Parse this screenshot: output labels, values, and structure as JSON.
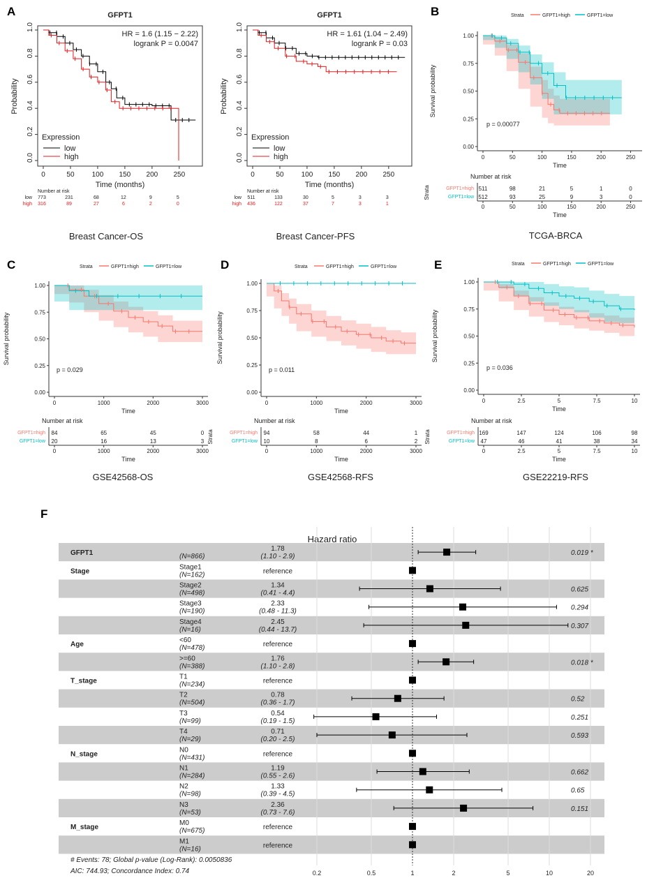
{
  "colors": {
    "high": "#f8766d",
    "low": "#00bfc4",
    "high_fill": "#f8766d",
    "low_fill": "#00bfc4",
    "km_low": "#000000",
    "km_high": "#e41a1c",
    "row_band": "#cccccc"
  },
  "panels": {
    "A": {
      "letter": "A",
      "plots": [
        {
          "title": "GFPT1",
          "hr_text": "HR = 1.6 (1.15 − 2.22)",
          "logrank_text": "logrank P = 0.0047",
          "ylabel": "Probability",
          "xlabel": "Time (months)",
          "legend_title": "Expression",
          "legend_low": "low",
          "legend_high": "high",
          "risk_header": "Number at risk",
          "risk_low_label": "low",
          "risk_high_label": "high",
          "risk_low": [
            "773",
            "231",
            "68",
            "12",
            "9",
            "5"
          ],
          "risk_high": [
            "316",
            "89",
            "27",
            "6",
            "2",
            "0"
          ],
          "caption": "Breast Cancer-OS",
          "xticks": [
            "0",
            "50",
            "100",
            "150",
            "200",
            "250"
          ],
          "yticks": [
            "0.0",
            "0.2",
            "0.4",
            "0.6",
            "0.8",
            "1.0"
          ]
        },
        {
          "title": "GFPT1",
          "hr_text": "HR = 1.61 (1.04 − 2.49)",
          "logrank_text": "logrank P = 0.03",
          "ylabel": "Probability",
          "xlabel": "Time (months)",
          "legend_title": "Expression",
          "legend_low": "low",
          "legend_high": "high",
          "risk_header": "Number at risk",
          "risk_low_label": "low",
          "risk_high_label": "high",
          "risk_low": [
            "511",
            "133",
            "30",
            "5",
            "3",
            "3"
          ],
          "risk_high": [
            "436",
            "122",
            "37",
            "7",
            "3",
            "1"
          ],
          "caption": "Breast Cancer-PFS",
          "xticks": [
            "0",
            "50",
            "100",
            "150",
            "200",
            "250"
          ],
          "yticks": [
            "0.0",
            "0.2",
            "0.4",
            "0.6",
            "0.8",
            "1.0"
          ]
        }
      ]
    },
    "B": {
      "letter": "B",
      "caption": "TCGA-BRCA",
      "pvalue": "p = 0.00077",
      "risk_high": [
        "511",
        "98",
        "21",
        "5",
        "1",
        "0"
      ],
      "risk_low": [
        "512",
        "93",
        "25",
        "9",
        "3",
        "0"
      ],
      "xticks": [
        "0",
        "50",
        "100",
        "150",
        "200",
        "250"
      ]
    },
    "C": {
      "letter": "C",
      "caption": "GSE42568-OS",
      "pvalue": "p = 0.029",
      "risk_high": [
        "84",
        "65",
        "45",
        "0"
      ],
      "risk_low": [
        "20",
        "16",
        "13",
        "3"
      ],
      "xticks": [
        "0",
        "1000",
        "2000",
        "3000"
      ]
    },
    "D": {
      "letter": "D",
      "caption": "GSE42568-RFS",
      "pvalue": "p = 0.011",
      "risk_high": [
        "94",
        "58",
        "44",
        "1"
      ],
      "risk_low": [
        "10",
        "8",
        "6",
        "2"
      ],
      "xticks": [
        "0",
        "1000",
        "2000",
        "3000"
      ]
    },
    "E": {
      "letter": "E",
      "caption": "GSE22219-RFS",
      "pvalue": "p = 0.036",
      "risk_high": [
        "169",
        "147",
        "124",
        "106",
        "98"
      ],
      "risk_low": [
        "47",
        "46",
        "41",
        "38",
        "34"
      ],
      "xticks": [
        "0",
        "2.5",
        "5",
        "7.5",
        "10"
      ]
    },
    "F": {
      "letter": "F"
    }
  },
  "surv_common": {
    "strata_label": "Strata",
    "legend_high": "GFPT1=high",
    "legend_low": "GFPT1=low",
    "ylabel": "Survival probability",
    "xlabel": "Time",
    "risk_title": "Number at risk",
    "risk_axis": "Strata",
    "yticks": [
      "0.00",
      "0.25",
      "0.50",
      "0.75",
      "1.00"
    ]
  },
  "forest": {
    "title": "Hazard ratio",
    "footer1": "# Events: 78; Global p-value (Log-Rank): 0.0050836",
    "footer2": "AIC: 744.93; Concordance Index: 0.74",
    "xticks": [
      "0.2",
      "0.5",
      "1",
      "2",
      "5",
      "10",
      "20"
    ]
  },
  "chart_data": [
    {
      "panel": "A-left",
      "type": "line",
      "title": "GFPT1",
      "xlabel": "Time (months)",
      "ylabel": "Probability",
      "xlim": [
        0,
        290
      ],
      "ylim": [
        0,
        1
      ],
      "series": [
        {
          "name": "low",
          "x": [
            0,
            10,
            25,
            40,
            55,
            70,
            85,
            100,
            115,
            125,
            135,
            150,
            175,
            200,
            225,
            235,
            250,
            260,
            280
          ],
          "y": [
            1,
            0.98,
            0.95,
            0.9,
            0.85,
            0.8,
            0.74,
            0.68,
            0.6,
            0.55,
            0.48,
            0.43,
            0.43,
            0.42,
            0.42,
            0.31,
            0.31,
            0.31,
            0.31
          ]
        },
        {
          "name": "high",
          "x": [
            0,
            10,
            25,
            40,
            55,
            70,
            85,
            100,
            115,
            125,
            140,
            160,
            200,
            240,
            248,
            249
          ],
          "y": [
            1,
            0.96,
            0.9,
            0.84,
            0.78,
            0.7,
            0.64,
            0.6,
            0.54,
            0.45,
            0.4,
            0.4,
            0.4,
            0.4,
            0.4,
            0.0
          ]
        }
      ]
    },
    {
      "panel": "A-right",
      "type": "line",
      "title": "GFPT1",
      "xlabel": "Time (months)",
      "ylabel": "Probability",
      "xlim": [
        0,
        290
      ],
      "ylim": [
        0,
        1
      ],
      "series": [
        {
          "name": "low",
          "x": [
            0,
            10,
            25,
            40,
            60,
            80,
            100,
            120,
            135,
            150,
            200,
            280
          ],
          "y": [
            1,
            0.98,
            0.94,
            0.9,
            0.86,
            0.82,
            0.8,
            0.79,
            0.79,
            0.79,
            0.79,
            0.79
          ]
        },
        {
          "name": "high",
          "x": [
            0,
            10,
            25,
            40,
            60,
            80,
            100,
            120,
            130,
            135,
            200,
            265
          ],
          "y": [
            1,
            0.96,
            0.91,
            0.86,
            0.8,
            0.76,
            0.74,
            0.72,
            0.72,
            0.68,
            0.68,
            0.68
          ]
        }
      ]
    },
    {
      "panel": "B",
      "type": "line",
      "title": "TCGA-BRCA",
      "xlabel": "Time",
      "ylabel": "Survival probability",
      "xlim": [
        0,
        260
      ],
      "ylim": [
        0,
        1
      ],
      "series": [
        {
          "name": "GFPT1=high",
          "x": [
            0,
            20,
            40,
            60,
            80,
            100,
            110,
            120,
            130,
            215
          ],
          "y": [
            1,
            0.95,
            0.87,
            0.76,
            0.62,
            0.48,
            0.38,
            0.33,
            0.3,
            0.3
          ],
          "lower": [
            1,
            0.92,
            0.82,
            0.68,
            0.52,
            0.36,
            0.26,
            0.21,
            0.19,
            0.19
          ],
          "upper": [
            1,
            0.98,
            0.92,
            0.84,
            0.72,
            0.6,
            0.52,
            0.46,
            0.43,
            0.43
          ]
        },
        {
          "name": "GFPT1=low",
          "x": [
            0,
            20,
            40,
            60,
            80,
            100,
            120,
            140,
            235
          ],
          "y": [
            1,
            0.98,
            0.93,
            0.85,
            0.75,
            0.66,
            0.55,
            0.44,
            0.44
          ],
          "lower": [
            1,
            0.96,
            0.89,
            0.79,
            0.67,
            0.56,
            0.43,
            0.29,
            0.29
          ],
          "upper": [
            1,
            1.0,
            0.97,
            0.91,
            0.83,
            0.76,
            0.67,
            0.6,
            0.6
          ]
        }
      ]
    },
    {
      "panel": "C",
      "type": "line",
      "title": "GSE42568-OS",
      "xlabel": "Time",
      "ylabel": "Survival probability",
      "xlim": [
        0,
        3000
      ],
      "ylim": [
        0,
        1
      ],
      "series": [
        {
          "name": "GFPT1=high",
          "x": [
            0,
            300,
            600,
            900,
            1200,
            1500,
            1800,
            2100,
            2400,
            2700,
            3000
          ],
          "y": [
            1,
            0.96,
            0.9,
            0.83,
            0.76,
            0.7,
            0.66,
            0.62,
            0.57,
            0.57,
            0.57
          ],
          "lower": [
            1,
            0.92,
            0.84,
            0.75,
            0.67,
            0.61,
            0.56,
            0.52,
            0.47,
            0.47,
            0.47
          ],
          "upper": [
            1,
            1.0,
            0.96,
            0.91,
            0.85,
            0.8,
            0.76,
            0.72,
            0.67,
            0.67,
            0.67
          ]
        },
        {
          "name": "GFPT1=low",
          "x": [
            0,
            300,
            700,
            3000
          ],
          "y": [
            1,
            0.95,
            0.9,
            0.9
          ],
          "lower": [
            1,
            0.85,
            0.77,
            0.77
          ],
          "upper": [
            1,
            1,
            1,
            1
          ]
        }
      ]
    },
    {
      "panel": "D",
      "type": "line",
      "title": "GSE42568-RFS",
      "xlabel": "Time",
      "ylabel": "Survival probability",
      "xlim": [
        0,
        3000
      ],
      "ylim": [
        0,
        1
      ],
      "series": [
        {
          "name": "GFPT1=high",
          "x": [
            0,
            150,
            300,
            450,
            600,
            900,
            1200,
            1500,
            1800,
            2100,
            2400,
            2700,
            3000
          ],
          "y": [
            1,
            0.93,
            0.84,
            0.78,
            0.72,
            0.65,
            0.6,
            0.56,
            0.53,
            0.5,
            0.47,
            0.45,
            0.45
          ],
          "lower": [
            1,
            0.88,
            0.77,
            0.7,
            0.63,
            0.56,
            0.51,
            0.47,
            0.43,
            0.4,
            0.37,
            0.35,
            0.35
          ],
          "upper": [
            1,
            0.98,
            0.91,
            0.86,
            0.81,
            0.75,
            0.7,
            0.66,
            0.63,
            0.6,
            0.57,
            0.55,
            0.55
          ]
        },
        {
          "name": "GFPT1=low",
          "x": [
            0,
            3000
          ],
          "y": [
            1,
            1
          ],
          "lower": [
            1,
            1
          ],
          "upper": [
            1,
            1
          ]
        }
      ]
    },
    {
      "panel": "E",
      "type": "line",
      "title": "GSE22219-RFS",
      "xlabel": "Time",
      "ylabel": "Survival probability",
      "xlim": [
        0,
        10
      ],
      "ylim": [
        0,
        1
      ],
      "series": [
        {
          "name": "GFPT1=high",
          "x": [
            0,
            1,
            2,
            3,
            4,
            5,
            6,
            7,
            8,
            9,
            10
          ],
          "y": [
            1,
            0.95,
            0.87,
            0.8,
            0.74,
            0.7,
            0.67,
            0.64,
            0.62,
            0.6,
            0.58
          ],
          "lower": [
            1,
            0.92,
            0.82,
            0.74,
            0.68,
            0.63,
            0.6,
            0.57,
            0.55,
            0.53,
            0.5
          ],
          "upper": [
            1,
            0.98,
            0.92,
            0.86,
            0.81,
            0.77,
            0.74,
            0.71,
            0.69,
            0.67,
            0.66
          ]
        },
        {
          "name": "GFPT1=low",
          "x": [
            0,
            1,
            2,
            3,
            4,
            5,
            6,
            7,
            8,
            9,
            10
          ],
          "y": [
            1,
            1,
            0.98,
            0.94,
            0.9,
            0.87,
            0.85,
            0.82,
            0.78,
            0.75,
            0.74
          ],
          "lower": [
            1,
            1,
            0.94,
            0.87,
            0.82,
            0.78,
            0.75,
            0.72,
            0.67,
            0.63,
            0.62
          ],
          "upper": [
            1,
            1,
            1,
            1,
            0.98,
            0.96,
            0.95,
            0.92,
            0.89,
            0.87,
            0.86
          ]
        }
      ]
    },
    {
      "panel": "F",
      "type": "forest",
      "title": "Hazard ratio",
      "xscale": "log",
      "xlim": [
        0.2,
        20
      ],
      "rows": [
        {
          "var": "GFPT1",
          "level": "",
          "n": "(N=866)",
          "hr": "1.78",
          "ci": "(1.10 -  2.9)",
          "hrv": 1.78,
          "lo": 1.1,
          "hi": 2.9,
          "p": "0.019 *",
          "band": true
        },
        {
          "var": "Stage",
          "level": "Stage1",
          "n": "(N=162)",
          "hr": "reference",
          "ci": "",
          "hrv": 1,
          "lo": null,
          "hi": null,
          "p": "",
          "band": false
        },
        {
          "var": "",
          "level": "Stage2",
          "n": "(N=498)",
          "hr": "1.34",
          "ci": "(0.41 -  4.4)",
          "hrv": 1.34,
          "lo": 0.41,
          "hi": 4.4,
          "p": "0.625",
          "band": true
        },
        {
          "var": "",
          "level": "Stage3",
          "n": "(N=190)",
          "hr": "2.33",
          "ci": "(0.48 - 11.3)",
          "hrv": 2.33,
          "lo": 0.48,
          "hi": 11.3,
          "p": "0.294",
          "band": false
        },
        {
          "var": "",
          "level": "Stage4",
          "n": "(N=16)",
          "hr": "2.45",
          "ci": "(0.44 - 13.7)",
          "hrv": 2.45,
          "lo": 0.44,
          "hi": 13.7,
          "p": "0.307",
          "band": true
        },
        {
          "var": "Age",
          "level": "<60",
          "n": "(N=478)",
          "hr": "reference",
          "ci": "",
          "hrv": 1,
          "lo": null,
          "hi": null,
          "p": "",
          "band": false
        },
        {
          "var": "",
          "level": ">=60",
          "n": "(N=388)",
          "hr": "1.76",
          "ci": "(1.10 -  2.8)",
          "hrv": 1.76,
          "lo": 1.1,
          "hi": 2.8,
          "p": "0.018 *",
          "band": true
        },
        {
          "var": "T_stage",
          "level": "T1",
          "n": "(N=234)",
          "hr": "reference",
          "ci": "",
          "hrv": 1,
          "lo": null,
          "hi": null,
          "p": "",
          "band": false
        },
        {
          "var": "",
          "level": "T2",
          "n": "(N=504)",
          "hr": "0.78",
          "ci": "(0.36 -  1.7)",
          "hrv": 0.78,
          "lo": 0.36,
          "hi": 1.7,
          "p": "0.52",
          "band": true
        },
        {
          "var": "",
          "level": "T3",
          "n": "(N=99)",
          "hr": "0.54",
          "ci": "(0.19 -  1.5)",
          "hrv": 0.54,
          "lo": 0.19,
          "hi": 1.5,
          "p": "0.251",
          "band": false
        },
        {
          "var": "",
          "level": "T4",
          "n": "(N=29)",
          "hr": "0.71",
          "ci": "(0.20 -  2.5)",
          "hrv": 0.71,
          "lo": 0.2,
          "hi": 2.5,
          "p": "0.593",
          "band": true
        },
        {
          "var": "N_stage",
          "level": "N0",
          "n": "(N=431)",
          "hr": "reference",
          "ci": "",
          "hrv": 1,
          "lo": null,
          "hi": null,
          "p": "",
          "band": false
        },
        {
          "var": "",
          "level": "N1",
          "n": "(N=284)",
          "hr": "1.19",
          "ci": "(0.55 -  2.6)",
          "hrv": 1.19,
          "lo": 0.55,
          "hi": 2.6,
          "p": "0.662",
          "band": true
        },
        {
          "var": "",
          "level": "N2",
          "n": "(N=98)",
          "hr": "1.33",
          "ci": "(0.39 -  4.5)",
          "hrv": 1.33,
          "lo": 0.39,
          "hi": 4.5,
          "p": "0.65",
          "band": false
        },
        {
          "var": "",
          "level": "N3",
          "n": "(N=53)",
          "hr": "2.36",
          "ci": "(0.73 -  7.6)",
          "hrv": 2.36,
          "lo": 0.73,
          "hi": 7.6,
          "p": "0.151",
          "band": true
        },
        {
          "var": "M_stage",
          "level": "M0",
          "n": "(N=675)",
          "hr": "reference",
          "ci": "",
          "hrv": 1,
          "lo": null,
          "hi": null,
          "p": "",
          "band": false
        },
        {
          "var": "",
          "level": "M1",
          "n": "(N=16)",
          "hr": "reference",
          "ci": "",
          "hrv": 1,
          "lo": null,
          "hi": null,
          "p": "",
          "band": true
        }
      ]
    }
  ]
}
